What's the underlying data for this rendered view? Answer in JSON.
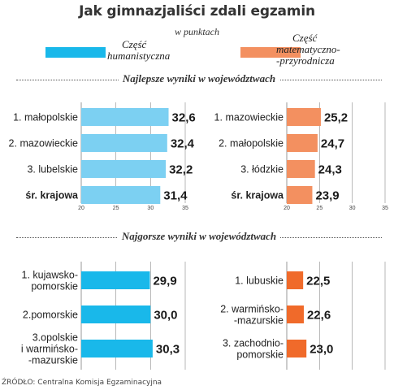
{
  "title": "Jak gimnazjaliści zdali egzamin",
  "subtitle": "w punktach",
  "legend": {
    "humanities": {
      "line1": "Część",
      "line2": "humanistyczna",
      "color": "#19b8ea"
    },
    "science": {
      "line1": "Część",
      "line2": "matematyczno-",
      "line3": "-przyrodnicza",
      "color": "#f39060"
    }
  },
  "sections": {
    "best": "Najlepsze wyniki w województwach",
    "worst": "Najgorsze wyniki w województwach"
  },
  "source": "ŹRÓDŁO: Centralna Komisja Egzaminacyjna",
  "chart_data": [
    {
      "type": "bar",
      "title": "",
      "categories": [
        "1. małopolskie",
        "2. mazowieckie",
        "3. lubelskie",
        "śr. krajowa"
      ],
      "values": [
        32.6,
        32.4,
        32.2,
        31.4
      ],
      "value_labels": [
        "32,6",
        "32,4",
        "32,2",
        "31,4"
      ],
      "xlim": [
        20,
        35
      ],
      "ticks": [
        "20",
        "25",
        "30",
        "35"
      ],
      "color": "#7cd0f2"
    },
    {
      "type": "bar",
      "title": "",
      "categories": [
        "1. mazowieckie",
        "2. małopolskie",
        "3. łódzkie",
        "śr. krajowa"
      ],
      "values": [
        25.2,
        24.7,
        24.3,
        23.9
      ],
      "value_labels": [
        "25,2",
        "24,7",
        "24,3",
        "23,9"
      ],
      "xlim": [
        20,
        35
      ],
      "ticks": [
        "20",
        "25",
        "30",
        "35"
      ],
      "color": "#f39060"
    },
    {
      "type": "bar",
      "title": "",
      "categories": [
        "1. kujawsko-|pomorskie",
        "2.pomorskie",
        "3.opolskie|i warmińsko-|-mazurskie"
      ],
      "values": [
        29.9,
        30.0,
        30.3
      ],
      "value_labels": [
        "29,9",
        "30,0",
        "30,3"
      ],
      "xlim": [
        20,
        35
      ],
      "color": "#19b8ea"
    },
    {
      "type": "bar",
      "title": "",
      "categories": [
        "1. lubuskie",
        "2. warmińsko-|-mazurskie",
        "3. zachodnio-|pomorskie"
      ],
      "values": [
        22.5,
        22.6,
        23.0
      ],
      "value_labels": [
        "22,5",
        "22,6",
        "23,0"
      ],
      "xlim": [
        20,
        35
      ],
      "color": "#f06a2a"
    }
  ]
}
